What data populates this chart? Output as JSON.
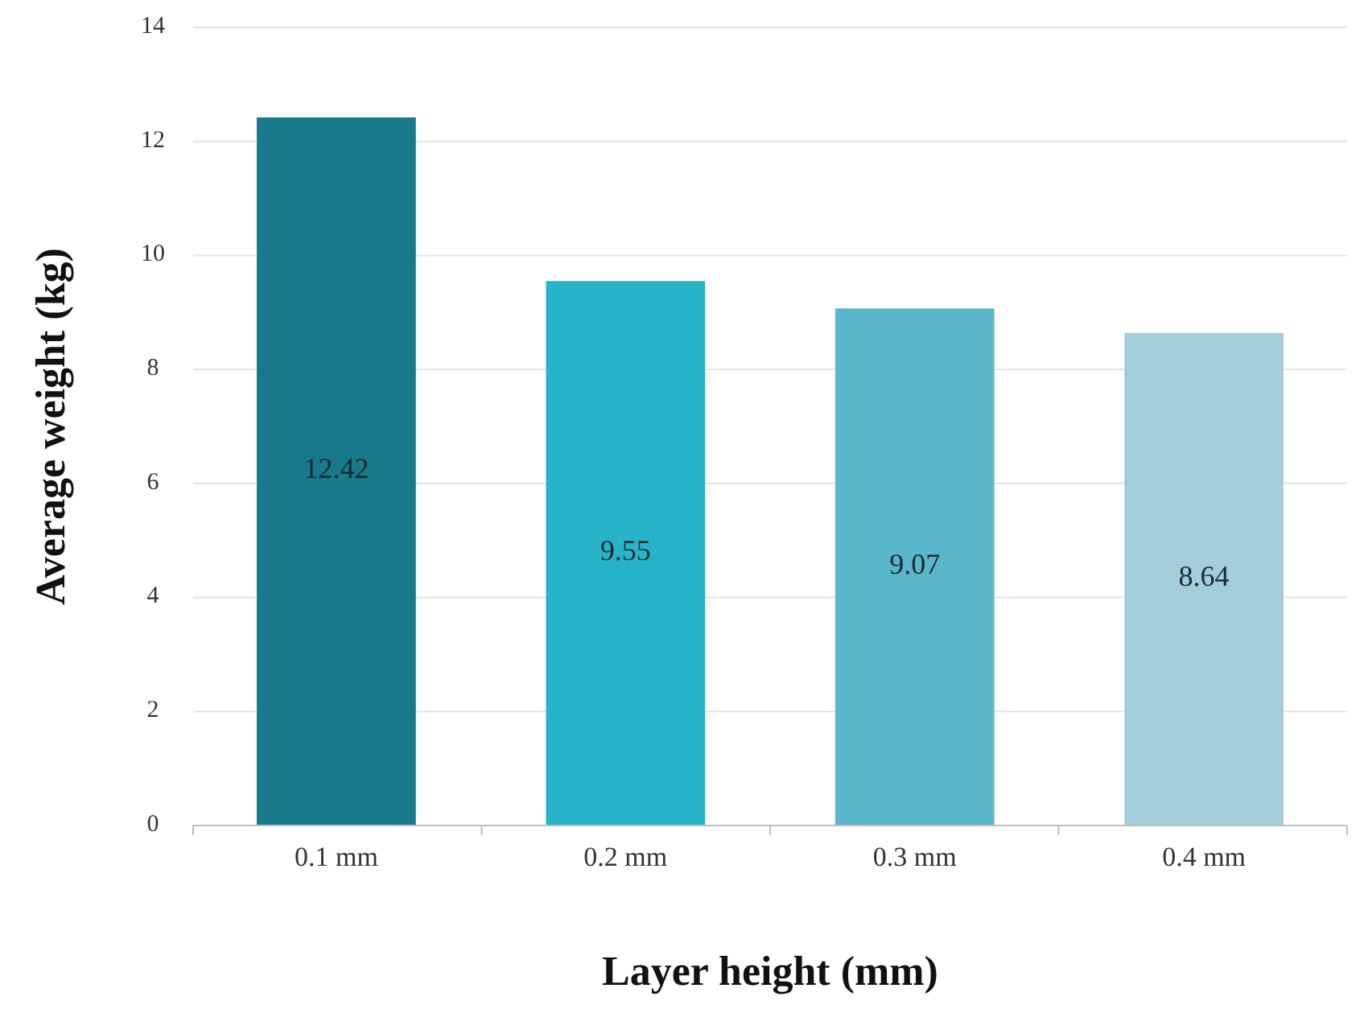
{
  "chart_data": {
    "type": "bar",
    "xlabel": "Layer height (mm)",
    "ylabel": "Average weight (kg)",
    "categories": [
      "0.1 mm",
      "0.2 mm",
      "0.3 mm",
      "0.4 mm"
    ],
    "values": [
      12.42,
      9.55,
      9.07,
      8.64
    ],
    "colors": [
      "#17798a",
      "#27b4c9",
      "#5ab6cb",
      "#a3cdd8"
    ],
    "ylim": [
      0,
      14
    ],
    "yticks": [
      0,
      2,
      4,
      6,
      8,
      10,
      12,
      14
    ],
    "grid": "y",
    "data_labels": true
  }
}
